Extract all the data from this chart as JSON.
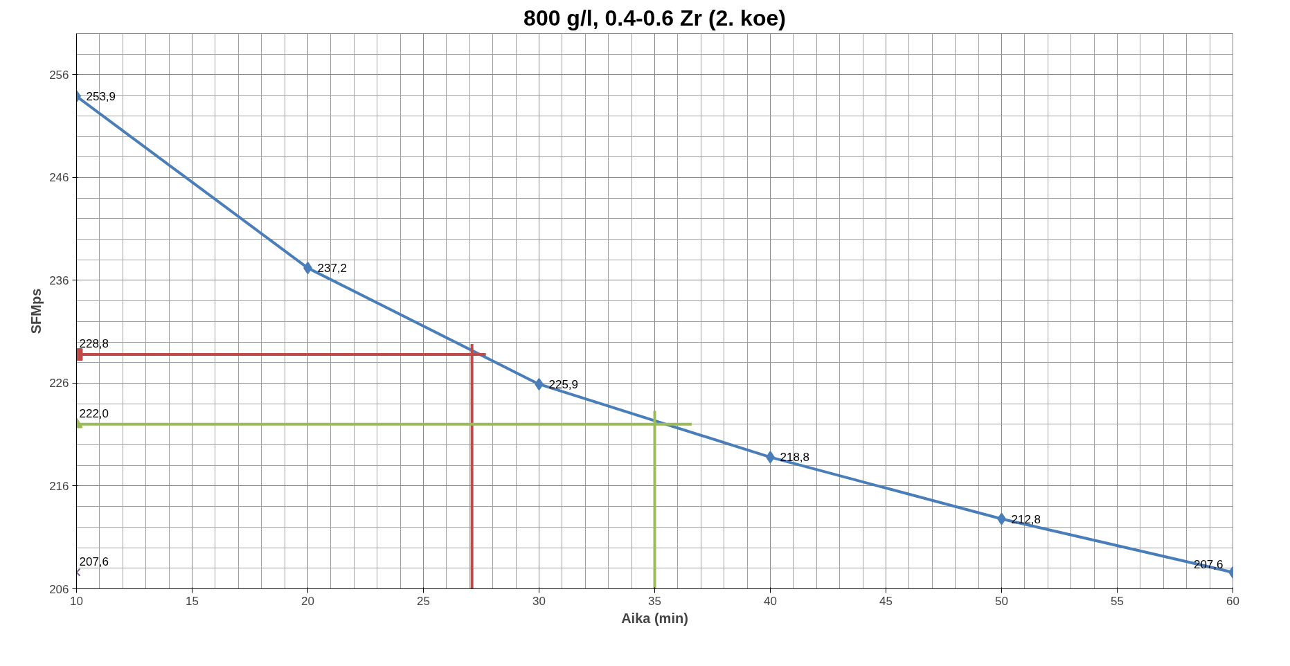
{
  "chart_data": {
    "type": "line",
    "title": "800 g/l, 0.4-0.6 Zr (2. koe)",
    "xlabel": "Aika (min)",
    "ylabel": "SFMps",
    "xlim": [
      10,
      60
    ],
    "xticks": [
      10,
      15,
      20,
      25,
      30,
      35,
      40,
      45,
      50,
      55,
      60
    ],
    "ylim": [
      206,
      260
    ],
    "yticks": [
      206,
      216,
      226,
      236,
      246,
      256
    ],
    "grid": true,
    "series": [
      {
        "color": "#4a7ebb",
        "marker": "diamond",
        "x": [
          10,
          20,
          30,
          40,
          50,
          60
        ],
        "values": [
          253.9,
          237.2,
          225.9,
          218.8,
          212.8,
          207.6
        ],
        "value_labels": [
          "253,9",
          "237,2",
          "225,9",
          "218,8",
          "212,8",
          "207,6"
        ]
      },
      {
        "color": "#be4b48",
        "marker": "none",
        "x": [
          10,
          27.7
        ],
        "values": [
          228.8,
          228.8
        ]
      },
      {
        "color": "#be4b48",
        "marker": "none",
        "x": [
          27.1,
          27.1
        ],
        "values": [
          229.8,
          206
        ]
      },
      {
        "type": "scatter",
        "color": "#be4b48",
        "marker": "square",
        "x": [
          10
        ],
        "values": [
          228.8
        ],
        "value_labels": [
          "228,8"
        ]
      },
      {
        "color": "#9bbb59",
        "marker": "none",
        "x": [
          10,
          36.6
        ],
        "values": [
          222.0,
          222.0
        ]
      },
      {
        "color": "#9bbb59",
        "marker": "none",
        "x": [
          35.0,
          35.0
        ],
        "values": [
          223.3,
          206
        ]
      },
      {
        "type": "scatter",
        "color": "#9bbb59",
        "marker": "triangle",
        "x": [
          10
        ],
        "values": [
          222.0
        ],
        "value_labels": [
          "222,0"
        ]
      },
      {
        "type": "scatter",
        "color": "#7d60a0",
        "marker": "cross",
        "x": [
          10
        ],
        "values": [
          207.6
        ],
        "value_labels": [
          "207,6"
        ]
      }
    ]
  }
}
